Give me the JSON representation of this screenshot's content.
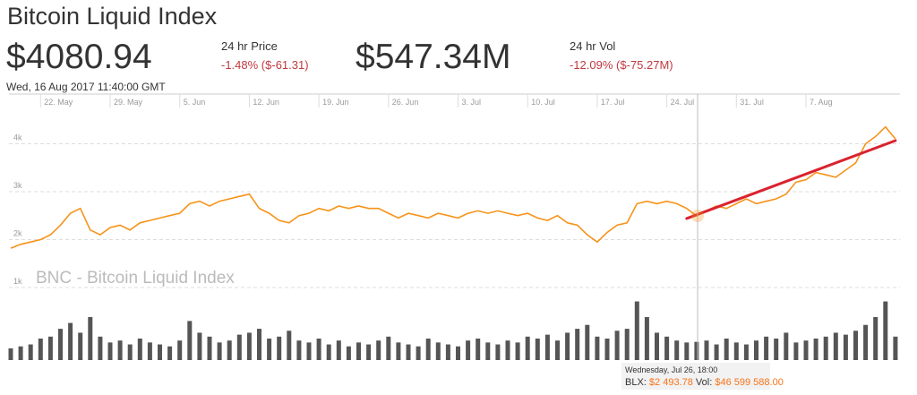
{
  "header": {
    "title": "Bitcoin Liquid Index",
    "price": "$4080.94",
    "price_label": "24 hr Price",
    "price_change": "-1.48% ($-61.31)",
    "volume": "$547.34M",
    "volume_label": "24 hr Vol",
    "volume_change": "-12.09% ($-75.27M)",
    "timestamp": "Wed, 16 Aug 2017 11:40:00 GMT"
  },
  "chart_data": {
    "type": "line",
    "watermark": "BNC - Bitcoin Liquid Index",
    "x": [
      "19. May",
      "20. May",
      "21. May",
      "22. May",
      "23. May",
      "24. May",
      "25. May",
      "26. May",
      "27. May",
      "28. May",
      "29. May",
      "30. May",
      "31. May",
      "1. Jun",
      "2. Jun",
      "3. Jun",
      "4. Jun",
      "5. Jun",
      "6. Jun",
      "7. Jun",
      "8. Jun",
      "9. Jun",
      "10. Jun",
      "11. Jun",
      "12. Jun",
      "13. Jun",
      "14. Jun",
      "15. Jun",
      "16. Jun",
      "17. Jun",
      "18. Jun",
      "19. Jun",
      "20. Jun",
      "21. Jun",
      "22. Jun",
      "23. Jun",
      "24. Jun",
      "25. Jun",
      "26. Jun",
      "27. Jun",
      "28. Jun",
      "29. Jun",
      "30. Jun",
      "1. Jul",
      "2. Jul",
      "3. Jul",
      "4. Jul",
      "5. Jul",
      "6. Jul",
      "7. Jul",
      "8. Jul",
      "9. Jul",
      "10. Jul",
      "11. Jul",
      "12. Jul",
      "13. Jul",
      "14. Jul",
      "15. Jul",
      "16. Jul",
      "17. Jul",
      "18. Jul",
      "19. Jul",
      "20. Jul",
      "21. Jul",
      "22. Jul",
      "23. Jul",
      "24. Jul",
      "25. Jul",
      "26. Jul",
      "27. Jul",
      "28. Jul",
      "29. Jul",
      "30. Jul",
      "31. Jul",
      "1. Aug",
      "2. Aug",
      "3. Aug",
      "4. Aug",
      "5. Aug",
      "6. Aug",
      "7. Aug",
      "8. Aug",
      "9. Aug",
      "10. Aug",
      "11. Aug",
      "12. Aug",
      "13. Aug",
      "14. Aug",
      "15. Aug",
      "16. Aug"
    ],
    "xticks": [
      "22. May",
      "29. May",
      "5. Jun",
      "12. Jun",
      "19. Jun",
      "26. Jun",
      "3. Jul",
      "10. Jul",
      "17. Jul",
      "24. Jul",
      "31. Jul",
      "7. Aug"
    ],
    "series": [
      {
        "color": "#f7931a",
        "values": [
          1820,
          1900,
          1950,
          2000,
          2100,
          2300,
          2550,
          2650,
          2200,
          2100,
          2250,
          2300,
          2200,
          2350,
          2400,
          2450,
          2500,
          2550,
          2750,
          2800,
          2700,
          2800,
          2850,
          2900,
          2950,
          2650,
          2550,
          2400,
          2350,
          2500,
          2550,
          2650,
          2600,
          2700,
          2650,
          2700,
          2650,
          2650,
          2550,
          2450,
          2550,
          2500,
          2450,
          2550,
          2500,
          2450,
          2550,
          2600,
          2550,
          2600,
          2550,
          2500,
          2550,
          2450,
          2400,
          2500,
          2350,
          2300,
          2100,
          1950,
          2150,
          2300,
          2350,
          2750,
          2800,
          2750,
          2800,
          2750,
          2650,
          2493.78,
          2600,
          2700,
          2650,
          2750,
          2850,
          2750,
          2800,
          2850,
          2950,
          3200,
          3250,
          3400,
          3350,
          3300,
          3450,
          3600,
          4000,
          4150,
          4350,
          4100
        ]
      },
      {
        "type": "bar",
        "axis": "y2",
        "color": "#555555",
        "values": [
          30,
          35,
          40,
          55,
          60,
          80,
          95,
          70,
          110,
          60,
          45,
          50,
          40,
          55,
          45,
          40,
          35,
          50,
          100,
          70,
          60,
          45,
          50,
          65,
          70,
          80,
          55,
          60,
          75,
          50,
          45,
          55,
          40,
          50,
          35,
          45,
          40,
          50,
          60,
          45,
          40,
          35,
          55,
          45,
          40,
          35,
          50,
          55,
          45,
          40,
          50,
          45,
          60,
          55,
          65,
          50,
          70,
          80,
          90,
          60,
          55,
          75,
          80,
          150,
          110,
          70,
          60,
          50,
          45,
          46.6,
          50,
          40,
          55,
          45,
          40,
          50,
          60,
          55,
          70,
          45,
          50,
          55,
          60,
          70,
          65,
          75,
          90,
          110,
          150,
          60
        ]
      }
    ],
    "trendline": {
      "color": "#d9232e",
      "x": [
        "26. Jul",
        "16. Aug"
      ],
      "values": [
        2440,
        4065
      ]
    },
    "ylim": [
      1000,
      5130
    ],
    "yticks": [
      {
        "value": 1000,
        "label": "1k"
      },
      {
        "value": 2000,
        "label": "2k"
      },
      {
        "value": 3000,
        "label": "3k"
      },
      {
        "value": 4000,
        "label": "4k"
      }
    ],
    "y2lim": [
      0,
      165
    ],
    "grid": true,
    "tooltip": {
      "date": "Wednesday, Jul 26, 18:00",
      "price_label": "BLX:",
      "price": "$2 493.78",
      "volume_label": "Vol:",
      "volume": "$46 599 588.00"
    }
  }
}
